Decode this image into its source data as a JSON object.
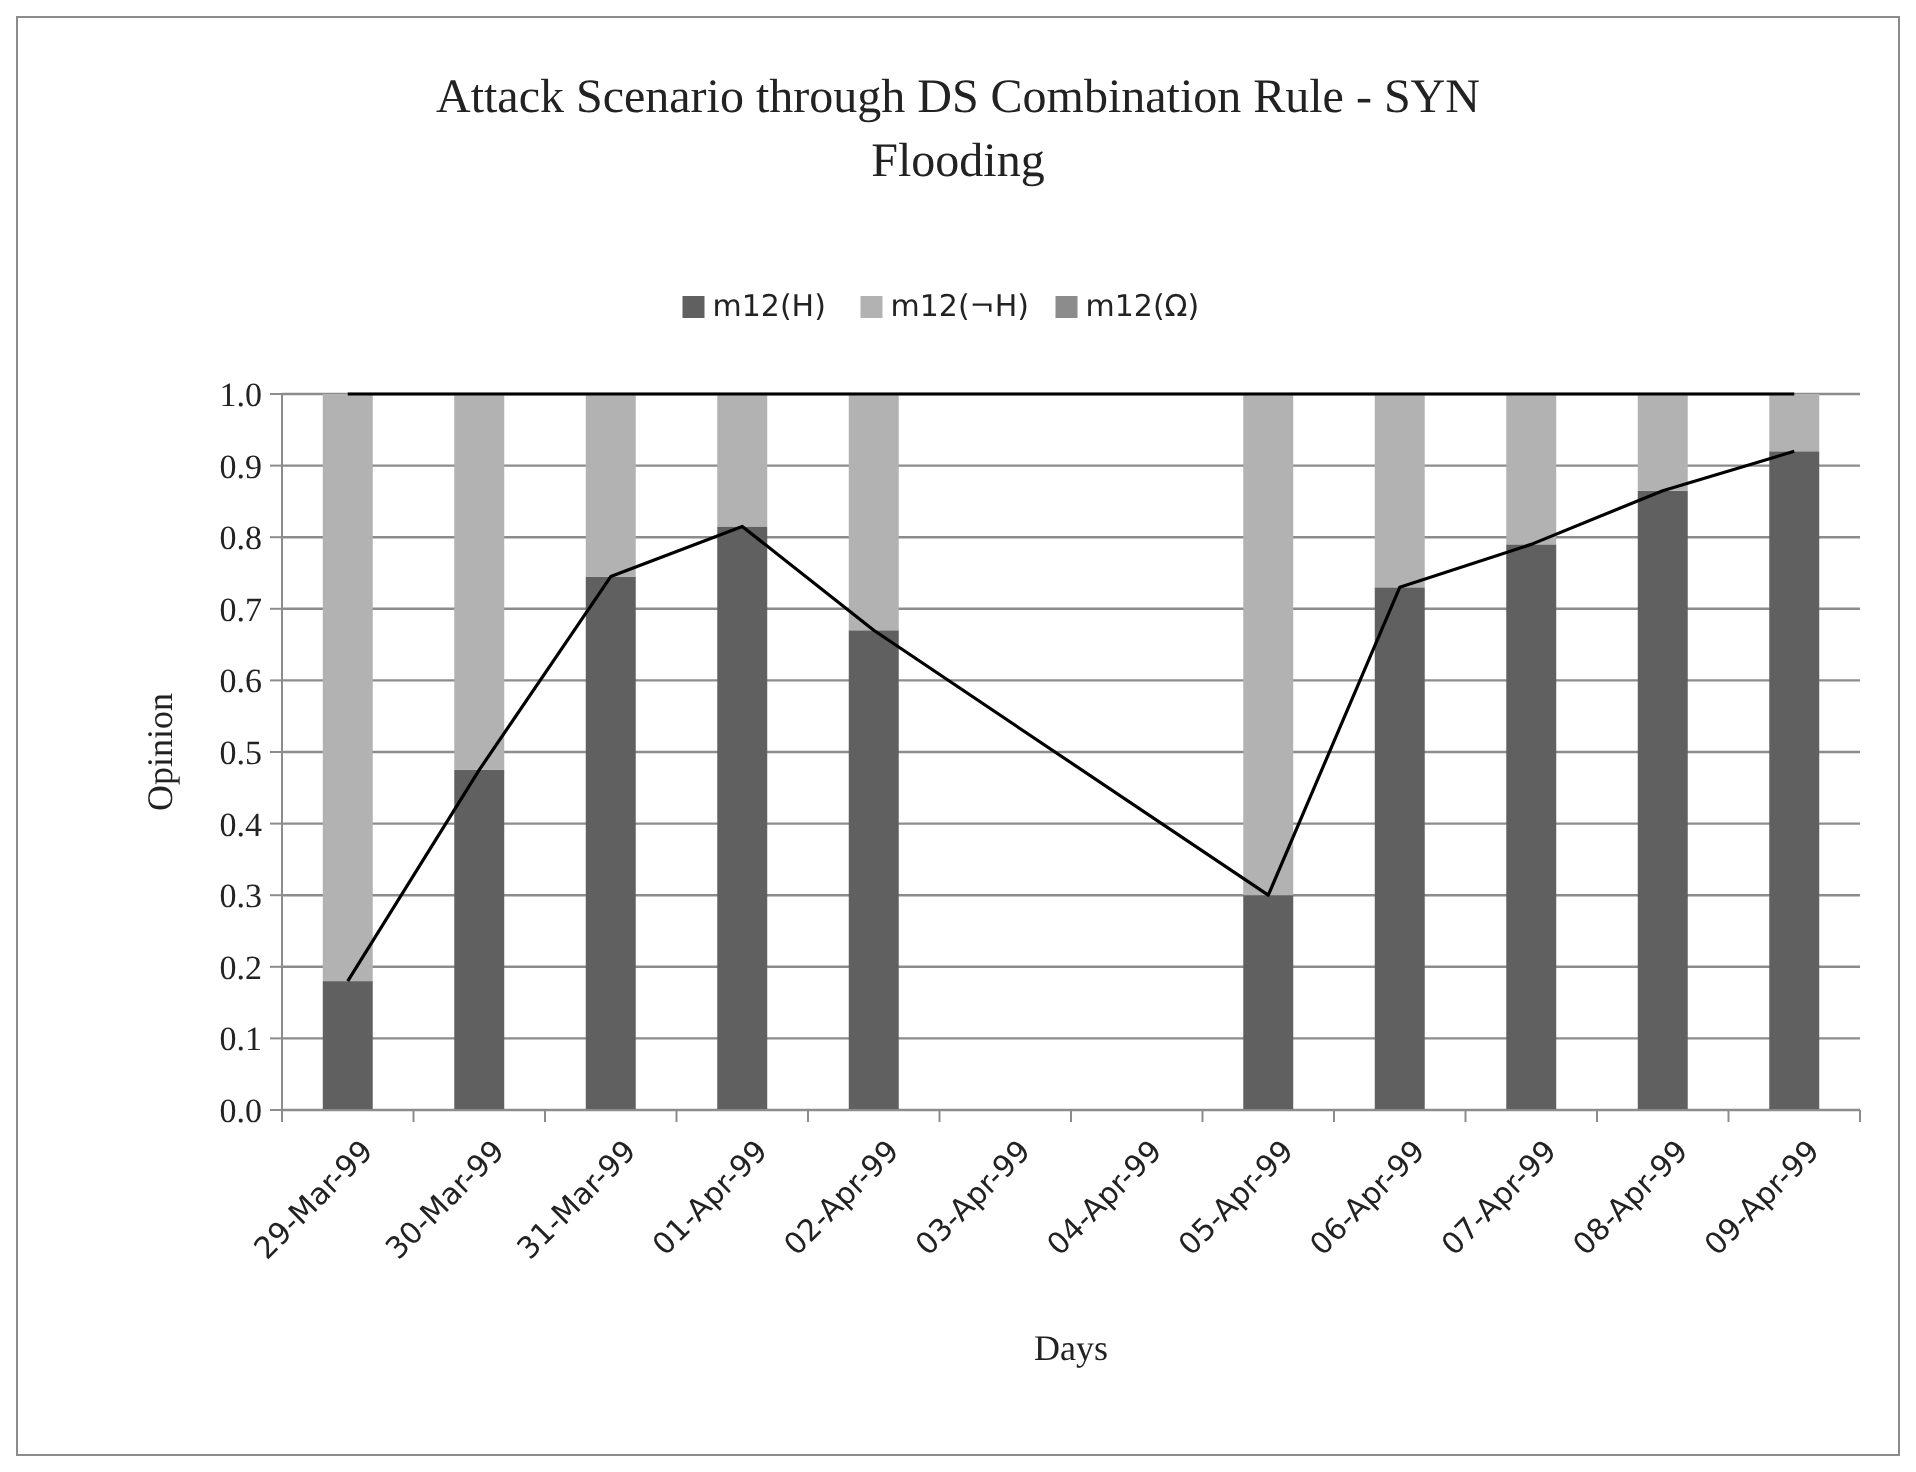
{
  "chart_data": {
    "type": "bar",
    "stacked": true,
    "title": "Attack Scenario through DS Combination Rule - SYN Flooding",
    "xlabel": "Days",
    "ylabel": "Opinion",
    "categories": [
      "29-Mar-99",
      "30-Mar-99",
      "31-Mar-99",
      "01-Apr-99",
      "02-Apr-99",
      "03-Apr-99",
      "04-Apr-99",
      "05-Apr-99",
      "06-Apr-99",
      "07-Apr-99",
      "08-Apr-99",
      "09-Apr-99"
    ],
    "series": [
      {
        "name": "m12(H)",
        "color": "#606060",
        "values": [
          0.18,
          0.475,
          0.745,
          0.815,
          0.67,
          null,
          null,
          0.3,
          0.73,
          0.79,
          0.865,
          0.92
        ]
      },
      {
        "name": "m12(¬H)",
        "color": "#b2b2b2",
        "values": [
          0.82,
          0.525,
          0.255,
          0.185,
          0.33,
          null,
          null,
          0.7,
          0.27,
          0.21,
          0.135,
          0.08
        ]
      },
      {
        "name": "m12(Ω)",
        "color": "#8c8c8c",
        "values": [
          0,
          0,
          0,
          0,
          0,
          null,
          null,
          0,
          0,
          0,
          0,
          0
        ]
      },
      {
        "type": "line",
        "color": "#000000",
        "values": [
          0.18,
          0.475,
          0.745,
          0.815,
          0.67,
          null,
          null,
          0.3,
          0.73,
          0.79,
          0.865,
          0.92
        ]
      },
      {
        "type": "line",
        "color": "#000000",
        "values": [
          1,
          1,
          1,
          1,
          1,
          1,
          1,
          1,
          1,
          1,
          1,
          1
        ]
      }
    ],
    "ylim": [
      0,
      1
    ],
    "yticks": [
      {
        "value": 0,
        "label": "0.0"
      },
      0.1,
      0.2,
      0.3,
      0.4,
      0.5,
      0.6,
      0.7,
      0.8,
      0.9,
      {
        "value": 1,
        "label": "1.0"
      }
    ],
    "grid": "y",
    "legend": "top"
  }
}
